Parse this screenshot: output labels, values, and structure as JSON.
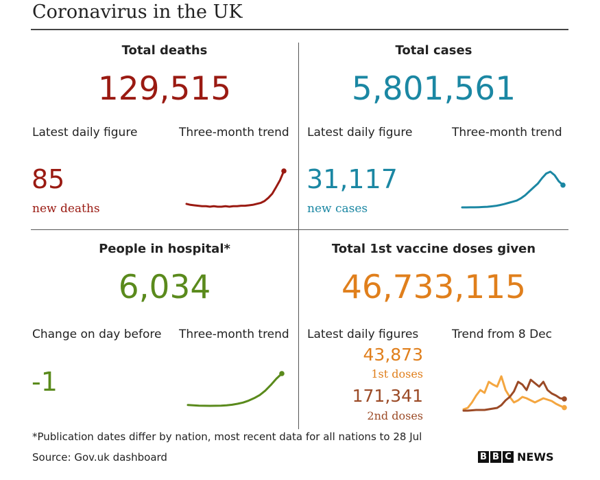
{
  "title": "Coronavirus in the UK",
  "colors": {
    "deaths": "#9a1a12",
    "cases": "#1b87a3",
    "hospital": "#5a8a1c",
    "vaccine": "#e07f1c",
    "vaccine_first_line": "#f4a640",
    "vaccine_second_line": "#9b4a26"
  },
  "panels": {
    "deaths": {
      "heading": "Total deaths",
      "total": "129,515",
      "latest_label": "Latest daily figure",
      "trend_label": "Three-month trend",
      "latest_value": "85",
      "latest_unit": "new deaths"
    },
    "cases": {
      "heading": "Total cases",
      "total": "5,801,561",
      "latest_label": "Latest daily figure",
      "trend_label": "Three-month trend",
      "latest_value": "31,117",
      "latest_unit": "new cases"
    },
    "hospital": {
      "heading": "People in hospital*",
      "total": "6,034",
      "latest_label": "Change on day before",
      "trend_label": "Three-month trend",
      "latest_value": "-1"
    },
    "vaccine": {
      "heading": "Total 1st vaccine doses given",
      "total": "46,733,115",
      "latest_label": "Latest daily figures",
      "trend_label": "Trend from 8 Dec",
      "first_value": "43,873",
      "first_unit": "1st doses",
      "second_value": "171,341",
      "second_unit": "2nd doses"
    }
  },
  "footer": {
    "note": "*Publication dates differ by nation, most recent data for all nations to 28 Jul",
    "source": "Source: Gov.uk dashboard",
    "logo_letters": [
      "B",
      "B",
      "C"
    ],
    "logo_word": "NEWS"
  },
  "chart_data": [
    {
      "type": "line",
      "series": [
        {
          "values": [
            14,
            12,
            11,
            10,
            9,
            9,
            8,
            9,
            8,
            8,
            9,
            8,
            9,
            9,
            10,
            10,
            11,
            12,
            14,
            16,
            20,
            27,
            36,
            50,
            65,
            85
          ]
        }
      ]
    },
    {
      "type": "line",
      "series": [
        {
          "values": [
            2200,
            2200,
            2300,
            2300,
            2500,
            2700,
            3000,
            3500,
            4200,
            5200,
            6500,
            8000,
            9500,
            11000,
            14000,
            18000,
            23000,
            28000,
            33000,
            40000,
            46000,
            48500,
            44000,
            36000,
            31117
          ]
        }
      ]
    },
    {
      "type": "line",
      "series": [
        {
          "values": [
            1000,
            950,
            900,
            880,
            870,
            880,
            900,
            950,
            1050,
            1200,
            1400,
            1700,
            2100,
            2600,
            3300,
            4200,
            5200,
            6034
          ]
        }
      ]
    },
    {
      "type": "line",
      "series": [
        {
          "name": "1st doses",
          "values": [
            20,
            40,
            120,
            220,
            300,
            260,
            420,
            380,
            350,
            500,
            300,
            200,
            120,
            150,
            200,
            180,
            150,
            120,
            150,
            180,
            160,
            140,
            100,
            70,
            44
          ]
        },
        {
          "name": "2nd doses",
          "values": [
            0,
            0,
            5,
            10,
            10,
            10,
            20,
            30,
            40,
            80,
            150,
            200,
            280,
            420,
            380,
            300,
            450,
            400,
            350,
            420,
            300,
            250,
            220,
            180,
            171
          ]
        }
      ]
    }
  ]
}
